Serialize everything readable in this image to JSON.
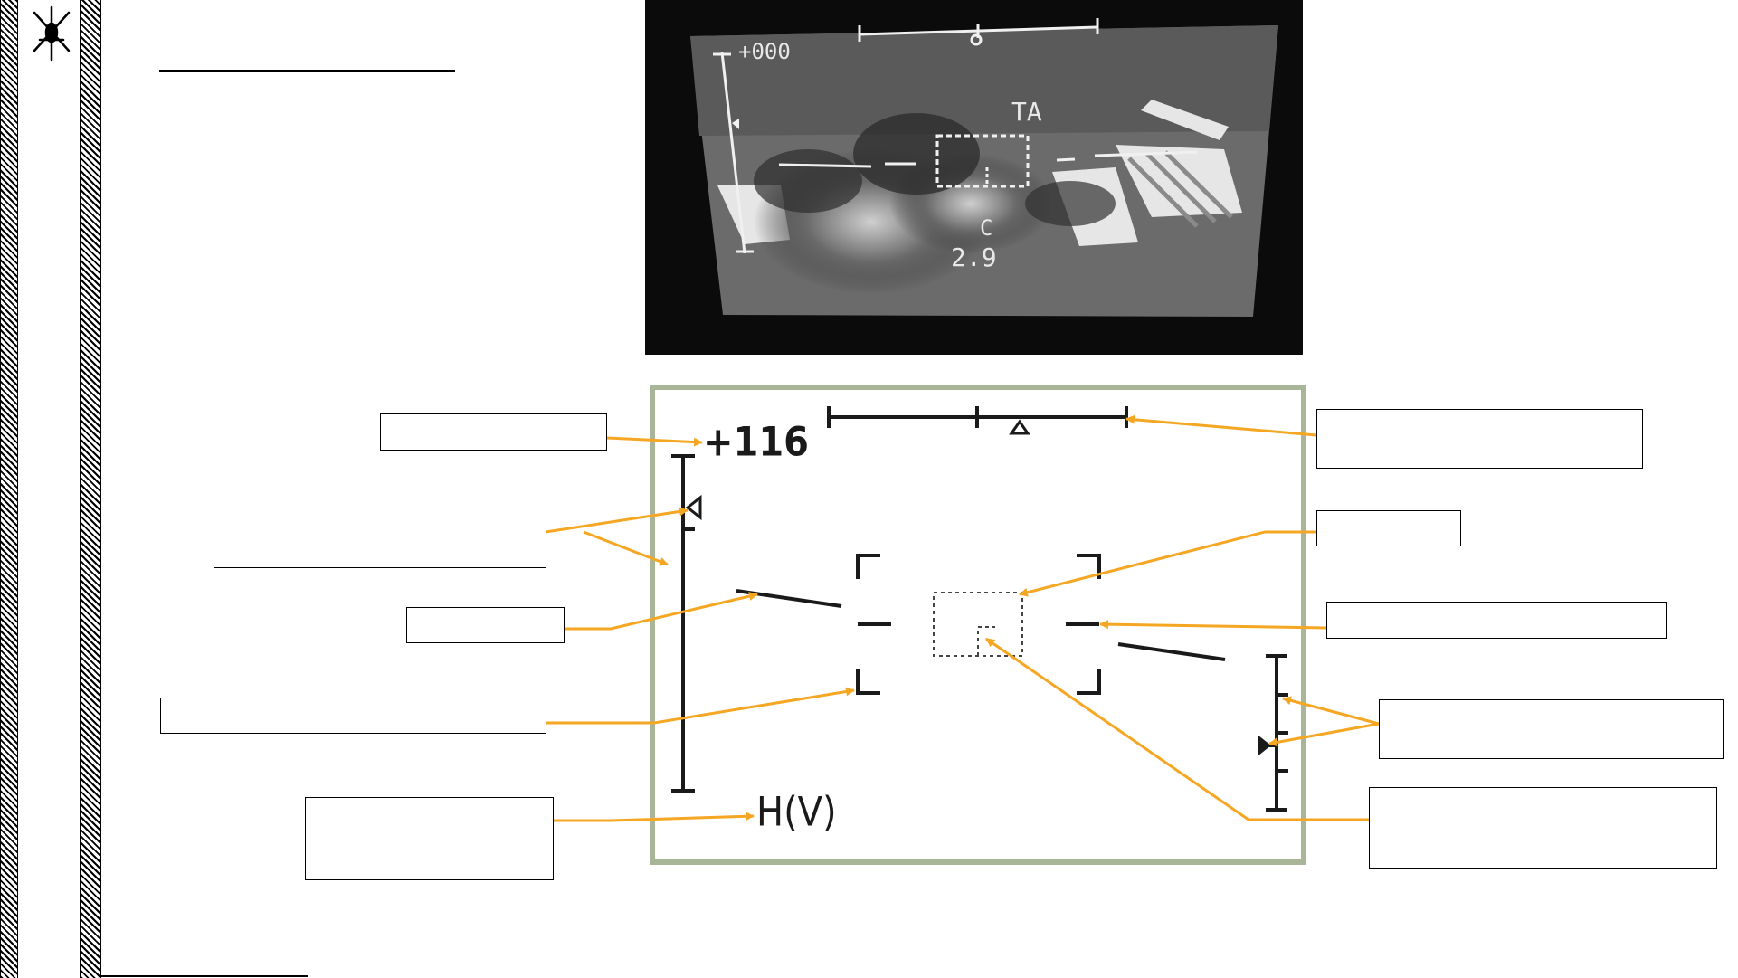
{
  "photo": {
    "angle_readout": "+000",
    "mode_label": "TA",
    "code_letter": "C",
    "range_readout": "2.9"
  },
  "diagram": {
    "angle_readout": "+116",
    "mode_label": "H(V)"
  },
  "callouts": {
    "azimuth_scale": "",
    "angle_readout": "",
    "elevation_scale": "",
    "target_box": "",
    "horizon_line": "",
    "aiming_reticle": "",
    "aircraft_horizon_bar": "",
    "speed_scale": "",
    "range_mode": "",
    "aim_point_marker": ""
  },
  "colors": {
    "arrow": "#f5a623",
    "frame": "#a8b598",
    "symbol": "#1a1a1a"
  }
}
